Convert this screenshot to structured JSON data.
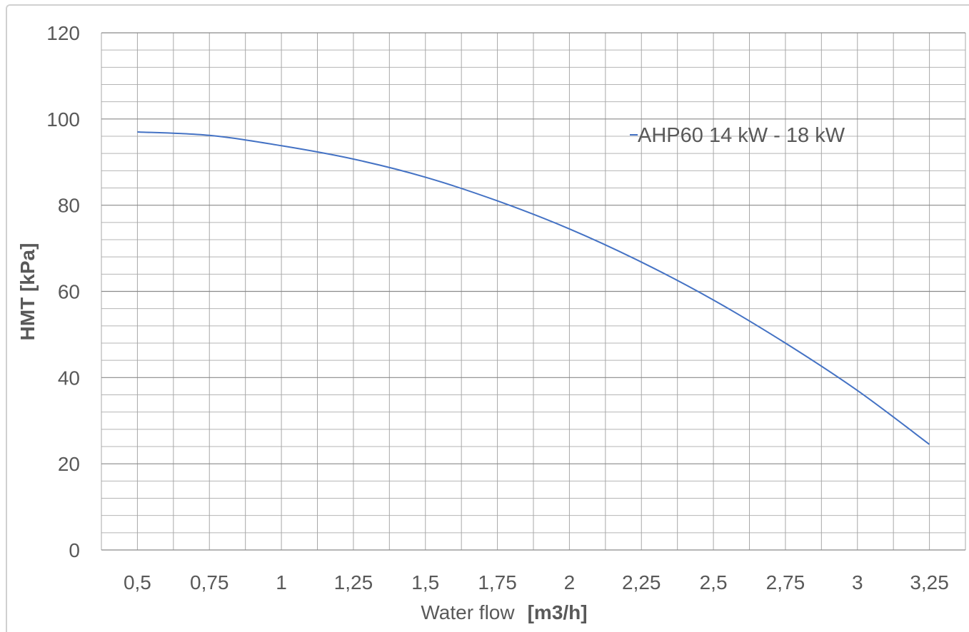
{
  "chart_data": {
    "type": "line",
    "x_tick_labels": [
      "0,5",
      "0,75",
      "1",
      "1,25",
      "1,5",
      "1,75",
      "2",
      "2,25",
      "2,5",
      "2,75",
      "3",
      "3,25"
    ],
    "y_tick_labels": [
      "0",
      "20",
      "40",
      "60",
      "80",
      "100",
      "120"
    ],
    "xlim": [
      0.375,
      3.375
    ],
    "ylim": [
      0,
      120
    ],
    "xlabel_parts": [
      "Water flow",
      "[m3/h]"
    ],
    "ylabel": "HMT [kPa]",
    "grid": true,
    "legend_position": "top-right",
    "series": [
      {
        "name": "AHP60 14 kW - 18 kW",
        "color": "#4472c4",
        "points": [
          {
            "x": 0.5,
            "y": 97
          },
          {
            "x": 0.75,
            "y": 96.2
          },
          {
            "x": 1.0,
            "y": 93.8
          },
          {
            "x": 1.25,
            "y": 90.7
          },
          {
            "x": 1.5,
            "y": 86.5
          },
          {
            "x": 1.75,
            "y": 81.0
          },
          {
            "x": 2.0,
            "y": 74.5
          },
          {
            "x": 2.25,
            "y": 66.8
          },
          {
            "x": 2.5,
            "y": 58.0
          },
          {
            "x": 2.75,
            "y": 48.0
          },
          {
            "x": 3.0,
            "y": 37.0
          },
          {
            "x": 3.25,
            "y": 24.5
          }
        ]
      }
    ]
  }
}
